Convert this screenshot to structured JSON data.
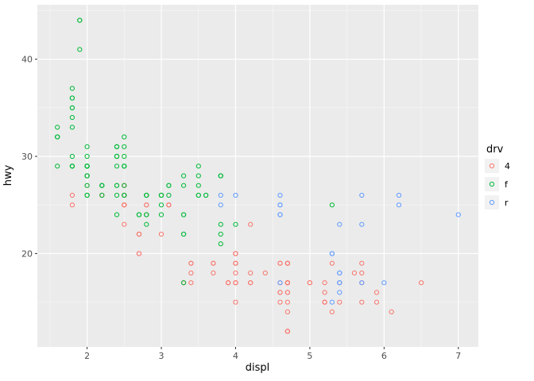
{
  "theme": {
    "panel_bg": "#EBEBEB",
    "grid_major": "#FFFFFF",
    "grid_minor": "#F7F7F7",
    "tick_color": "#333333",
    "tick_label_color": "#4D4D4D",
    "axis_title_color": "#000000",
    "legend_key_bg": "#F2F2F2",
    "background": "#FFFFFF"
  },
  "chart_data": {
    "type": "scatter",
    "title": "",
    "xlabel": "displ",
    "ylabel": "hwy",
    "xlim": [
      1.33,
      7.27
    ],
    "ylim": [
      10.4,
      45.6
    ],
    "x_ticks": [
      2,
      3,
      4,
      5,
      6,
      7
    ],
    "y_ticks": [
      20,
      30,
      40
    ],
    "x_minor_ticks": [
      1.5,
      2.5,
      3.5,
      4.5,
      5.5,
      6.5
    ],
    "y_minor_ticks": [
      15,
      25,
      35,
      45
    ],
    "grid": "on",
    "point_shape": "open-circle",
    "legend": {
      "title": "drv",
      "position": "right",
      "entries": [
        "4",
        "f",
        "r"
      ]
    },
    "series": [
      {
        "name": "4",
        "color": "#F8766D",
        "points": [
          [
            1.8,
            26
          ],
          [
            1.8,
            25
          ],
          [
            2.0,
            28
          ],
          [
            2.0,
            27
          ],
          [
            2.8,
            25
          ],
          [
            2.8,
            25
          ],
          [
            3.1,
            25
          ],
          [
            3.1,
            25
          ],
          [
            2.8,
            24
          ],
          [
            3.1,
            25
          ],
          [
            4.2,
            23
          ],
          [
            5.3,
            19
          ],
          [
            5.3,
            14
          ],
          [
            5.7,
            15
          ],
          [
            6.5,
            17
          ],
          [
            3.7,
            19
          ],
          [
            3.7,
            18
          ],
          [
            3.9,
            17
          ],
          [
            3.9,
            17
          ],
          [
            4.7,
            19
          ],
          [
            4.7,
            19
          ],
          [
            4.7,
            12
          ],
          [
            5.2,
            17
          ],
          [
            5.2,
            15
          ],
          [
            3.9,
            17
          ],
          [
            4.7,
            17
          ],
          [
            4.7,
            12
          ],
          [
            4.7,
            17
          ],
          [
            4.7,
            16
          ],
          [
            5.2,
            15
          ],
          [
            5.9,
            16
          ],
          [
            4.7,
            12
          ],
          [
            4.7,
            17
          ],
          [
            4.7,
            15
          ],
          [
            4.7,
            17
          ],
          [
            4.7,
            16
          ],
          [
            4.7,
            12
          ],
          [
            5.2,
            15
          ],
          [
            5.2,
            16
          ],
          [
            5.7,
            17
          ],
          [
            5.9,
            15
          ],
          [
            4.0,
            17
          ],
          [
            4.0,
            17
          ],
          [
            4.0,
            19
          ],
          [
            4.0,
            19
          ],
          [
            4.6,
            19
          ],
          [
            5.0,
            17
          ],
          [
            4.2,
            17
          ],
          [
            4.2,
            17
          ],
          [
            4.6,
            16
          ],
          [
            4.6,
            16
          ],
          [
            4.6,
            17
          ],
          [
            5.4,
            15
          ],
          [
            5.4,
            17
          ],
          [
            3.0,
            22
          ],
          [
            3.7,
            19
          ],
          [
            4.0,
            18
          ],
          [
            4.7,
            19
          ],
          [
            4.7,
            19
          ],
          [
            4.7,
            14
          ],
          [
            5.7,
            19
          ],
          [
            6.1,
            14
          ],
          [
            4.0,
            15
          ],
          [
            4.2,
            18
          ],
          [
            4.4,
            18
          ],
          [
            4.6,
            15
          ],
          [
            4.0,
            17
          ],
          [
            4.0,
            19
          ],
          [
            4.6,
            19
          ],
          [
            5.0,
            17
          ],
          [
            3.3,
            17
          ],
          [
            3.3,
            17
          ],
          [
            4.0,
            20
          ],
          [
            5.6,
            18
          ],
          [
            2.5,
            26
          ],
          [
            2.5,
            25
          ],
          [
            2.5,
            27
          ],
          [
            2.5,
            25
          ],
          [
            2.5,
            26
          ],
          [
            2.5,
            23
          ],
          [
            2.2,
            26
          ],
          [
            2.2,
            26
          ],
          [
            2.5,
            26
          ],
          [
            2.5,
            25
          ],
          [
            2.5,
            27
          ],
          [
            2.5,
            25
          ],
          [
            2.5,
            27
          ],
          [
            2.5,
            26
          ],
          [
            2.7,
            20
          ],
          [
            2.7,
            20
          ],
          [
            3.4,
            19
          ],
          [
            3.4,
            17
          ],
          [
            4.0,
            20
          ],
          [
            4.7,
            17
          ],
          [
            4.7,
            17
          ],
          [
            5.7,
            18
          ],
          [
            2.7,
            22
          ],
          [
            2.7,
            22
          ],
          [
            2.7,
            22
          ],
          [
            3.4,
            19
          ],
          [
            3.4,
            18
          ],
          [
            4.0,
            20
          ],
          [
            4.0,
            20
          ]
        ]
      },
      {
        "name": "f",
        "color": "#00BA38",
        "points": [
          [
            1.8,
            29
          ],
          [
            1.8,
            29
          ],
          [
            2.0,
            31
          ],
          [
            2.0,
            30
          ],
          [
            2.8,
            26
          ],
          [
            2.8,
            26
          ],
          [
            3.1,
            27
          ],
          [
            2.4,
            27
          ],
          [
            2.4,
            30
          ],
          [
            3.1,
            26
          ],
          [
            3.5,
            29
          ],
          [
            3.6,
            26
          ],
          [
            2.4,
            24
          ],
          [
            3.0,
            24
          ],
          [
            3.3,
            22
          ],
          [
            3.3,
            22
          ],
          [
            3.3,
            24
          ],
          [
            3.3,
            24
          ],
          [
            3.3,
            17
          ],
          [
            3.8,
            22
          ],
          [
            3.8,
            21
          ],
          [
            3.8,
            23
          ],
          [
            4.0,
            23
          ],
          [
            1.6,
            33
          ],
          [
            1.6,
            32
          ],
          [
            1.6,
            32
          ],
          [
            1.6,
            29
          ],
          [
            1.6,
            32
          ],
          [
            1.8,
            34
          ],
          [
            1.8,
            36
          ],
          [
            1.8,
            36
          ],
          [
            2.0,
            29
          ],
          [
            2.4,
            26
          ],
          [
            2.4,
            27
          ],
          [
            2.4,
            30
          ],
          [
            2.4,
            31
          ],
          [
            2.5,
            26
          ],
          [
            2.5,
            26
          ],
          [
            3.3,
            28
          ],
          [
            2.0,
            26
          ],
          [
            2.0,
            28
          ],
          [
            2.0,
            27
          ],
          [
            2.0,
            28
          ],
          [
            2.7,
            24
          ],
          [
            2.7,
            24
          ],
          [
            2.7,
            24
          ],
          [
            2.4,
            29
          ],
          [
            2.5,
            27
          ],
          [
            2.5,
            31
          ],
          [
            2.5,
            32
          ],
          [
            3.5,
            27
          ],
          [
            3.5,
            26
          ],
          [
            3.0,
            26
          ],
          [
            3.0,
            25
          ],
          [
            3.5,
            26
          ],
          [
            3.1,
            27
          ],
          [
            3.8,
            28
          ],
          [
            3.8,
            28
          ],
          [
            3.8,
            28
          ],
          [
            5.3,
            25
          ],
          [
            2.2,
            27
          ],
          [
            2.2,
            27
          ],
          [
            2.4,
            30
          ],
          [
            2.4,
            31
          ],
          [
            3.0,
            26
          ],
          [
            3.0,
            26
          ],
          [
            3.5,
            28
          ],
          [
            2.2,
            26
          ],
          [
            2.2,
            27
          ],
          [
            2.4,
            30
          ],
          [
            2.4,
            31
          ],
          [
            3.0,
            26
          ],
          [
            3.0,
            26
          ],
          [
            3.3,
            27
          ],
          [
            1.8,
            30
          ],
          [
            1.8,
            33
          ],
          [
            1.8,
            35
          ],
          [
            1.8,
            35
          ],
          [
            1.8,
            37
          ],
          [
            2.0,
            29
          ],
          [
            2.0,
            29
          ],
          [
            2.0,
            28
          ],
          [
            2.0,
            29
          ],
          [
            2.8,
            24
          ],
          [
            1.9,
            44
          ],
          [
            2.0,
            29
          ],
          [
            2.0,
            26
          ],
          [
            2.0,
            29
          ],
          [
            2.0,
            29
          ],
          [
            2.5,
            29
          ],
          [
            2.5,
            29
          ],
          [
            2.8,
            24
          ],
          [
            2.8,
            23
          ],
          [
            1.9,
            44
          ],
          [
            1.9,
            41
          ],
          [
            2.0,
            29
          ],
          [
            2.0,
            26
          ],
          [
            2.5,
            30
          ],
          [
            2.5,
            29
          ],
          [
            1.8,
            29
          ],
          [
            1.8,
            29
          ],
          [
            2.0,
            28
          ],
          [
            2.0,
            29
          ],
          [
            2.8,
            26
          ],
          [
            2.8,
            26
          ],
          [
            3.6,
            26
          ]
        ]
      },
      {
        "name": "r",
        "color": "#619CFF",
        "points": [
          [
            5.3,
            20
          ],
          [
            5.3,
            15
          ],
          [
            5.3,
            20
          ],
          [
            5.7,
            17
          ],
          [
            6.0,
            17
          ],
          [
            5.7,
            26
          ],
          [
            5.7,
            23
          ],
          [
            6.2,
            26
          ],
          [
            6.2,
            25
          ],
          [
            7.0,
            24
          ],
          [
            4.6,
            17
          ],
          [
            5.4,
            17
          ],
          [
            5.4,
            18
          ],
          [
            3.8,
            26
          ],
          [
            3.8,
            25
          ],
          [
            4.0,
            26
          ],
          [
            4.6,
            24
          ],
          [
            4.6,
            25
          ],
          [
            4.6,
            25
          ],
          [
            4.6,
            24
          ],
          [
            4.6,
            26
          ],
          [
            5.4,
            23
          ],
          [
            5.4,
            17
          ],
          [
            5.4,
            16
          ],
          [
            5.4,
            18
          ]
        ]
      }
    ]
  }
}
